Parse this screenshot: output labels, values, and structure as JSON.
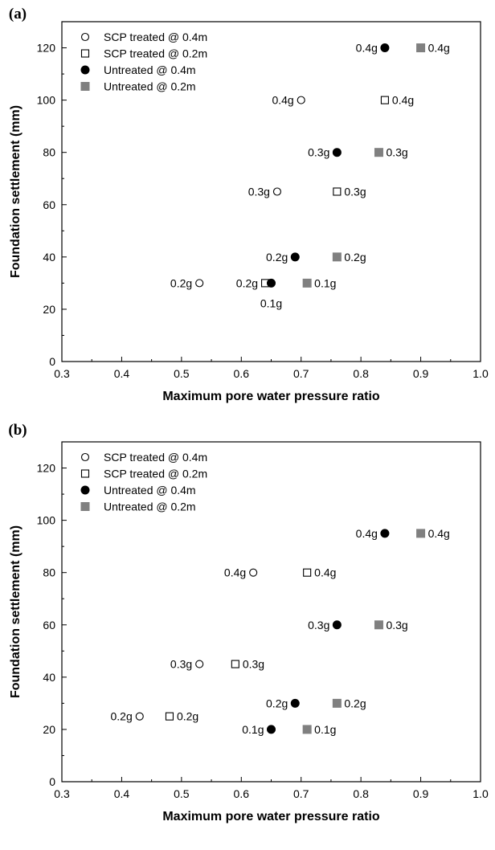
{
  "chart_data": [
    {
      "type": "scatter",
      "panel_label": "(a)",
      "xlabel": "Maximum pore water pressure ratio",
      "ylabel": "Foundation settlement (mm)",
      "xlim": [
        0.3,
        1.0
      ],
      "ylim": [
        0,
        130
      ],
      "xticks": [
        "0.3",
        "0.4",
        "0.5",
        "0.6",
        "0.7",
        "0.8",
        "0.9",
        "1.0"
      ],
      "yticks": [
        "0",
        "20",
        "40",
        "60",
        "80",
        "100",
        "120"
      ],
      "legend_position": "top-left",
      "grid": false,
      "series": [
        {
          "name": "SCP treated @ 0.4m",
          "marker": "open-circle",
          "color": "#000000",
          "points": [
            {
              "x": 0.53,
              "y": 30,
              "label": "0.2g",
              "label_side": "left"
            },
            {
              "x": 0.66,
              "y": 65,
              "label": "0.3g",
              "label_side": "left"
            },
            {
              "x": 0.7,
              "y": 100,
              "label": "0.4g",
              "label_side": "left"
            }
          ]
        },
        {
          "name": "SCP treated @ 0.2m",
          "marker": "open-square",
          "color": "#000000",
          "points": [
            {
              "x": 0.64,
              "y": 30,
              "label": "0.2g",
              "label_side": "left"
            },
            {
              "x": 0.76,
              "y": 65,
              "label": "0.3g",
              "label_side": "right"
            },
            {
              "x": 0.84,
              "y": 100,
              "label": "0.4g",
              "label_side": "right"
            }
          ]
        },
        {
          "name": "Untreated @ 0.4m",
          "marker": "filled-circle",
          "color": "#000000",
          "points": [
            {
              "x": 0.65,
              "y": 30,
              "label": "0.1g",
              "label_side": "below"
            },
            {
              "x": 0.69,
              "y": 40,
              "label": "0.2g",
              "label_side": "left"
            },
            {
              "x": 0.76,
              "y": 80,
              "label": "0.3g",
              "label_side": "left"
            },
            {
              "x": 0.84,
              "y": 120,
              "label": "0.4g",
              "label_side": "left"
            }
          ]
        },
        {
          "name": "Untreated @ 0.2m",
          "marker": "filled-square",
          "color": "#808080",
          "points": [
            {
              "x": 0.71,
              "y": 30,
              "label": "0.1g",
              "label_side": "right"
            },
            {
              "x": 0.76,
              "y": 40,
              "label": "0.2g",
              "label_side": "right"
            },
            {
              "x": 0.83,
              "y": 80,
              "label": "0.3g",
              "label_side": "right"
            },
            {
              "x": 0.9,
              "y": 120,
              "label": "0.4g",
              "label_side": "right"
            }
          ]
        }
      ]
    },
    {
      "type": "scatter",
      "panel_label": "(b)",
      "xlabel": "Maximum pore water pressure ratio",
      "ylabel": "Foundation settlement (mm)",
      "xlim": [
        0.3,
        1.0
      ],
      "ylim": [
        0,
        130
      ],
      "xticks": [
        "0.3",
        "0.4",
        "0.5",
        "0.6",
        "0.7",
        "0.8",
        "0.9",
        "1.0"
      ],
      "yticks": [
        "0",
        "20",
        "40",
        "60",
        "80",
        "100",
        "120"
      ],
      "legend_position": "top-left",
      "grid": false,
      "series": [
        {
          "name": "SCP treated @ 0.4m",
          "marker": "open-circle",
          "color": "#000000",
          "points": [
            {
              "x": 0.43,
              "y": 25,
              "label": "0.2g",
              "label_side": "left"
            },
            {
              "x": 0.53,
              "y": 45,
              "label": "0.3g",
              "label_side": "left"
            },
            {
              "x": 0.62,
              "y": 80,
              "label": "0.4g",
              "label_side": "left"
            }
          ]
        },
        {
          "name": "SCP treated @ 0.2m",
          "marker": "open-square",
          "color": "#000000",
          "points": [
            {
              "x": 0.48,
              "y": 25,
              "label": "0.2g",
              "label_side": "right"
            },
            {
              "x": 0.59,
              "y": 45,
              "label": "0.3g",
              "label_side": "right"
            },
            {
              "x": 0.71,
              "y": 80,
              "label": "0.4g",
              "label_side": "right"
            }
          ]
        },
        {
          "name": "Untreated @ 0.4m",
          "marker": "filled-circle",
          "color": "#000000",
          "points": [
            {
              "x": 0.65,
              "y": 20,
              "label": "0.1g",
              "label_side": "left"
            },
            {
              "x": 0.69,
              "y": 30,
              "label": "0.2g",
              "label_side": "left"
            },
            {
              "x": 0.76,
              "y": 60,
              "label": "0.3g",
              "label_side": "left"
            },
            {
              "x": 0.84,
              "y": 95,
              "label": "0.4g",
              "label_side": "left"
            }
          ]
        },
        {
          "name": "Untreated @ 0.2m",
          "marker": "filled-square",
          "color": "#808080",
          "points": [
            {
              "x": 0.71,
              "y": 20,
              "label": "0.1g",
              "label_side": "right"
            },
            {
              "x": 0.76,
              "y": 30,
              "label": "0.2g",
              "label_side": "right"
            },
            {
              "x": 0.83,
              "y": 60,
              "label": "0.3g",
              "label_side": "right"
            },
            {
              "x": 0.9,
              "y": 95,
              "label": "0.4g",
              "label_side": "right"
            }
          ]
        }
      ]
    }
  ]
}
